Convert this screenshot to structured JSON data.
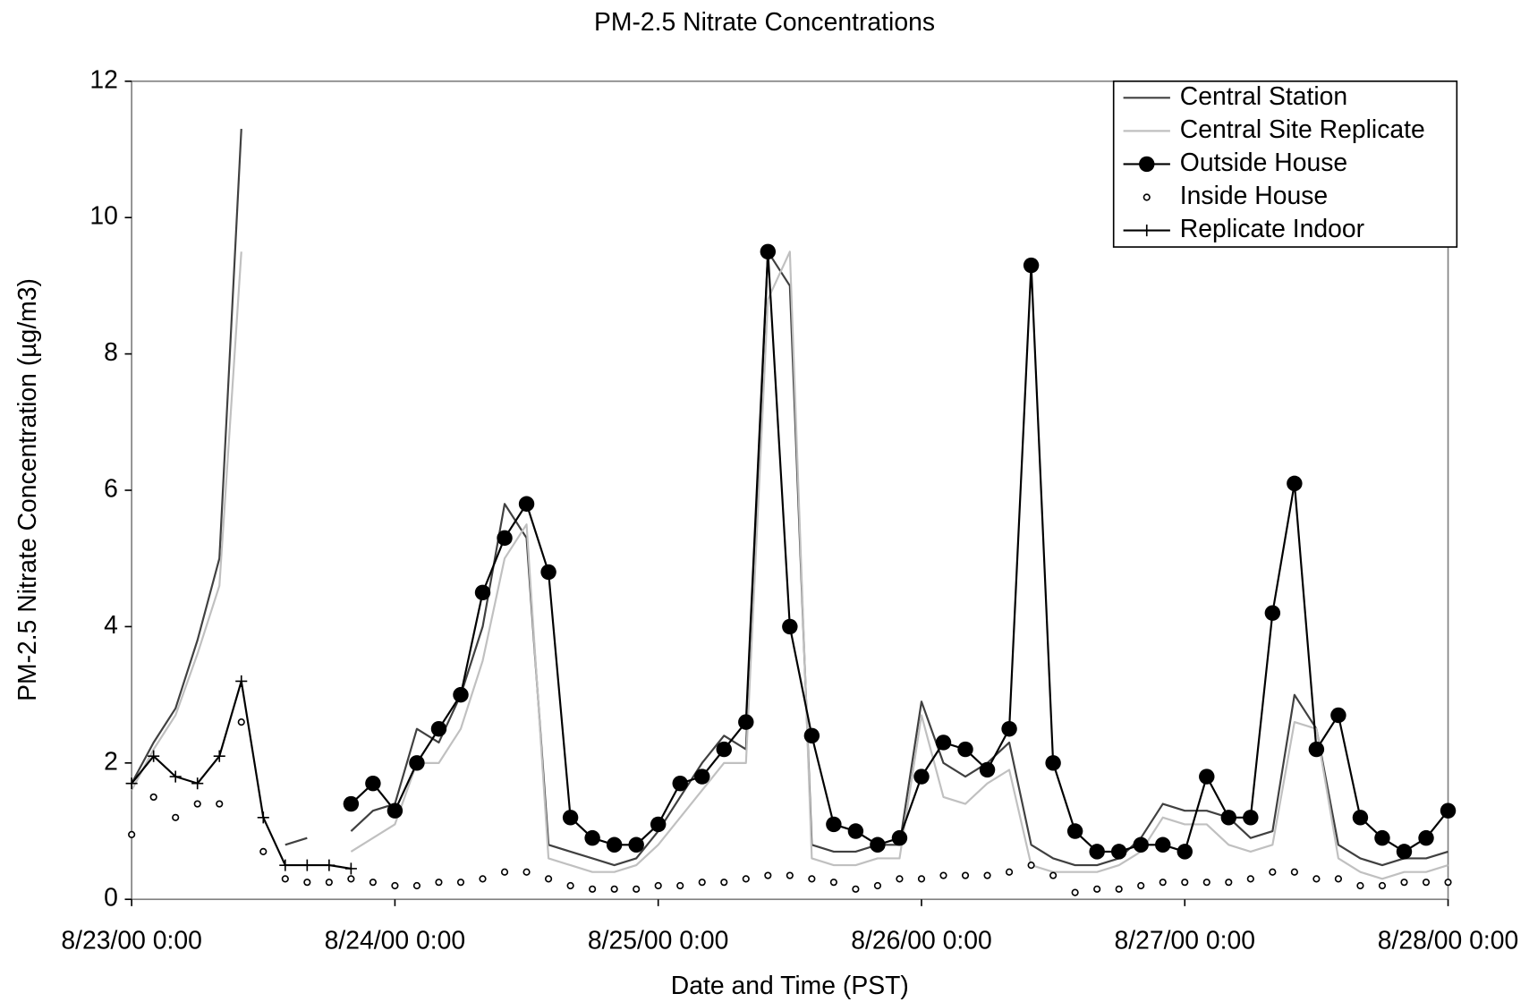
{
  "chart_data": {
    "type": "line",
    "title": "PM-2.5 Nitrate Concentrations",
    "x_label": "Date and Time (PST)",
    "y_label": "PM-2.5 Nitrate Concentration (µg/m3)",
    "x": [
      "2000-08-23T00:00",
      "2000-08-23T02:00",
      "2000-08-23T04:00",
      "2000-08-23T06:00",
      "2000-08-23T08:00",
      "2000-08-23T10:00",
      "2000-08-23T12:00",
      "2000-08-23T14:00",
      "2000-08-23T16:00",
      "2000-08-23T18:00",
      "2000-08-23T20:00",
      "2000-08-23T22:00",
      "2000-08-24T00:00",
      "2000-08-24T02:00",
      "2000-08-24T04:00",
      "2000-08-24T06:00",
      "2000-08-24T08:00",
      "2000-08-24T10:00",
      "2000-08-24T12:00",
      "2000-08-24T14:00",
      "2000-08-24T16:00",
      "2000-08-24T18:00",
      "2000-08-24T20:00",
      "2000-08-24T22:00",
      "2000-08-25T00:00",
      "2000-08-25T02:00",
      "2000-08-25T04:00",
      "2000-08-25T06:00",
      "2000-08-25T08:00",
      "2000-08-25T10:00",
      "2000-08-25T12:00",
      "2000-08-25T14:00",
      "2000-08-25T16:00",
      "2000-08-25T18:00",
      "2000-08-25T20:00",
      "2000-08-25T22:00",
      "2000-08-26T00:00",
      "2000-08-26T02:00",
      "2000-08-26T04:00",
      "2000-08-26T06:00",
      "2000-08-26T08:00",
      "2000-08-26T10:00",
      "2000-08-26T12:00",
      "2000-08-26T14:00",
      "2000-08-26T16:00",
      "2000-08-26T18:00",
      "2000-08-26T20:00",
      "2000-08-26T22:00",
      "2000-08-27T00:00",
      "2000-08-27T02:00",
      "2000-08-27T04:00",
      "2000-08-27T06:00",
      "2000-08-27T08:00",
      "2000-08-27T10:00",
      "2000-08-27T12:00",
      "2000-08-27T14:00",
      "2000-08-27T16:00",
      "2000-08-27T18:00",
      "2000-08-27T20:00",
      "2000-08-27T22:00",
      "2000-08-28T00:00"
    ],
    "series": [
      {
        "name": "Central Station",
        "color": "#404040",
        "line": true,
        "marker": null,
        "values": [
          1.7,
          2.3,
          2.8,
          3.8,
          5.0,
          11.3,
          null,
          0.8,
          0.9,
          null,
          1.0,
          1.3,
          1.4,
          2.5,
          2.3,
          3.0,
          4.0,
          5.8,
          5.3,
          0.8,
          0.7,
          0.6,
          0.5,
          0.6,
          1.0,
          1.5,
          2.0,
          2.4,
          2.2,
          9.5,
          9.0,
          0.8,
          0.7,
          0.7,
          0.8,
          0.8,
          2.9,
          2.0,
          1.8,
          2.0,
          2.3,
          0.8,
          0.6,
          0.5,
          0.5,
          0.6,
          0.9,
          1.4,
          1.3,
          1.3,
          1.2,
          0.9,
          1.0,
          3.0,
          2.5,
          0.8,
          0.6,
          0.5,
          0.6,
          0.6,
          0.7
        ]
      },
      {
        "name": "Central Site Replicate",
        "color": "#c0c0c0",
        "line": true,
        "marker": null,
        "values": [
          1.6,
          2.2,
          2.7,
          3.6,
          4.6,
          9.5,
          null,
          null,
          null,
          null,
          0.7,
          0.9,
          1.1,
          2.0,
          2.0,
          2.5,
          3.5,
          5.0,
          5.5,
          0.6,
          0.5,
          0.4,
          0.4,
          0.5,
          0.8,
          1.2,
          1.6,
          2.0,
          2.0,
          8.8,
          9.5,
          0.6,
          0.5,
          0.5,
          0.6,
          0.6,
          2.7,
          1.5,
          1.4,
          1.7,
          1.9,
          0.5,
          0.4,
          0.4,
          0.4,
          0.5,
          0.7,
          1.2,
          1.1,
          1.1,
          0.8,
          0.7,
          0.8,
          2.6,
          2.5,
          0.6,
          0.4,
          0.3,
          0.4,
          0.4,
          0.5
        ]
      },
      {
        "name": "Outside House",
        "color": "#000000",
        "line": true,
        "marker": "circle-filled",
        "values": [
          null,
          null,
          null,
          null,
          null,
          null,
          null,
          null,
          null,
          null,
          1.4,
          1.7,
          1.3,
          2.0,
          2.5,
          3.0,
          4.5,
          5.3,
          5.8,
          4.8,
          1.2,
          0.9,
          0.8,
          0.8,
          1.1,
          1.7,
          1.8,
          2.2,
          2.6,
          9.5,
          4.0,
          2.4,
          1.1,
          1.0,
          0.8,
          0.9,
          1.8,
          2.3,
          2.2,
          1.9,
          2.5,
          9.3,
          2.0,
          1.0,
          0.7,
          0.7,
          0.8,
          0.8,
          0.7,
          1.8,
          1.2,
          1.2,
          4.2,
          6.1,
          2.2,
          2.7,
          1.2,
          0.9,
          0.7,
          0.9,
          1.3
        ]
      },
      {
        "name": "Inside House",
        "color": "#000000",
        "line": false,
        "marker": "circle-open",
        "values": [
          0.95,
          1.5,
          1.2,
          1.4,
          1.4,
          2.6,
          0.7,
          0.3,
          0.25,
          0.25,
          0.3,
          0.25,
          0.2,
          0.2,
          0.25,
          0.25,
          0.3,
          0.4,
          0.4,
          0.3,
          0.2,
          0.15,
          0.15,
          0.15,
          0.2,
          0.2,
          0.25,
          0.25,
          0.3,
          0.35,
          0.35,
          0.3,
          0.25,
          0.15,
          0.2,
          0.3,
          0.3,
          0.35,
          0.35,
          0.35,
          0.4,
          0.5,
          0.35,
          0.1,
          0.15,
          0.15,
          0.2,
          0.25,
          0.25,
          0.25,
          0.25,
          0.3,
          0.4,
          0.4,
          0.3,
          0.3,
          0.2,
          0.2,
          0.25,
          0.25,
          0.25
        ]
      },
      {
        "name": "Replicate Indoor",
        "color": "#000000",
        "line": true,
        "marker": "plus",
        "values": [
          1.7,
          2.1,
          1.8,
          1.7,
          2.1,
          3.2,
          1.2,
          0.5,
          0.5,
          0.5,
          0.45,
          null,
          null,
          null,
          null,
          null,
          null,
          null,
          null,
          null,
          null,
          null,
          null,
          null,
          null,
          null,
          null,
          null,
          null,
          null,
          null,
          null,
          null,
          null,
          null,
          null,
          null,
          null,
          null,
          null,
          null,
          null,
          null,
          null,
          null,
          null,
          null,
          null,
          null,
          null,
          null,
          null,
          null,
          null,
          null,
          null,
          null,
          null,
          null,
          null,
          null
        ]
      }
    ],
    "xlim": [
      "2000-08-23T00:00",
      "2000-08-28T00:00"
    ],
    "xticks": [
      {
        "value": "2000-08-23T00:00",
        "label": "8/23/00 0:00"
      },
      {
        "value": "2000-08-24T00:00",
        "label": "8/24/00 0:00"
      },
      {
        "value": "2000-08-25T00:00",
        "label": "8/25/00 0:00"
      },
      {
        "value": "2000-08-26T00:00",
        "label": "8/26/00 0:00"
      },
      {
        "value": "2000-08-27T00:00",
        "label": "8/27/00 0:00"
      },
      {
        "value": "2000-08-28T00:00",
        "label": "8/28/00 0:00"
      }
    ],
    "ylim": [
      0,
      12
    ],
    "yticks": [
      0,
      2,
      4,
      6,
      8,
      10,
      12
    ],
    "grid": false,
    "legend": "top-right"
  }
}
